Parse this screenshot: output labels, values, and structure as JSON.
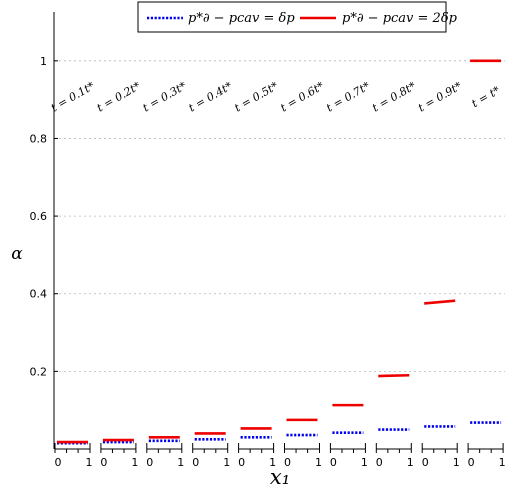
{
  "chart_data": {
    "type": "line",
    "ylabel": "α",
    "xlabel": "x₁",
    "ylim": [
      0,
      1.1
    ],
    "yticks": [
      0.2,
      0.4,
      0.6,
      0.8,
      1
    ],
    "ytick_labels": [
      "0.2",
      "0.4",
      "0.6",
      "0.8",
      "1"
    ],
    "grid": "horizontal dotted",
    "legend_position": "top-center",
    "panel_xticks": [
      "0",
      "1"
    ],
    "panels": [
      {
        "label": "t = 0.1t*",
        "blue": [
          0.015,
          0.015
        ],
        "red": [
          0.018,
          0.018
        ]
      },
      {
        "label": "t = 0.2t*",
        "blue": [
          0.018,
          0.018
        ],
        "red": [
          0.023,
          0.023
        ]
      },
      {
        "label": "t = 0.3t*",
        "blue": [
          0.021,
          0.021
        ],
        "red": [
          0.03,
          0.03
        ]
      },
      {
        "label": "t = 0.4t*",
        "blue": [
          0.025,
          0.025
        ],
        "red": [
          0.04,
          0.04
        ]
      },
      {
        "label": "t = 0.5t*",
        "blue": [
          0.03,
          0.03
        ],
        "red": [
          0.053,
          0.053
        ]
      },
      {
        "label": "t = 0.6t*",
        "blue": [
          0.036,
          0.036
        ],
        "red": [
          0.075,
          0.075
        ]
      },
      {
        "label": "t = 0.7t*",
        "blue": [
          0.042,
          0.042
        ],
        "red": [
          0.113,
          0.113
        ]
      },
      {
        "label": "t = 0.8t*",
        "blue": [
          0.05,
          0.05
        ],
        "red": [
          0.188,
          0.19
        ]
      },
      {
        "label": "t = 0.9t*",
        "blue": [
          0.058,
          0.058
        ],
        "red": [
          0.375,
          0.382
        ]
      },
      {
        "label": "t = t*",
        "blue": [
          0.068,
          0.068
        ],
        "red": [
          1.0,
          1.0
        ]
      }
    ],
    "series": [
      {
        "key": "blue",
        "name": "p*∂ − pcav = δp",
        "color": "#0000ee",
        "style": "dotted"
      },
      {
        "key": "red",
        "name": "p*∂ − pcav = 2δp",
        "color": "#ee0000",
        "style": "solid"
      }
    ]
  }
}
